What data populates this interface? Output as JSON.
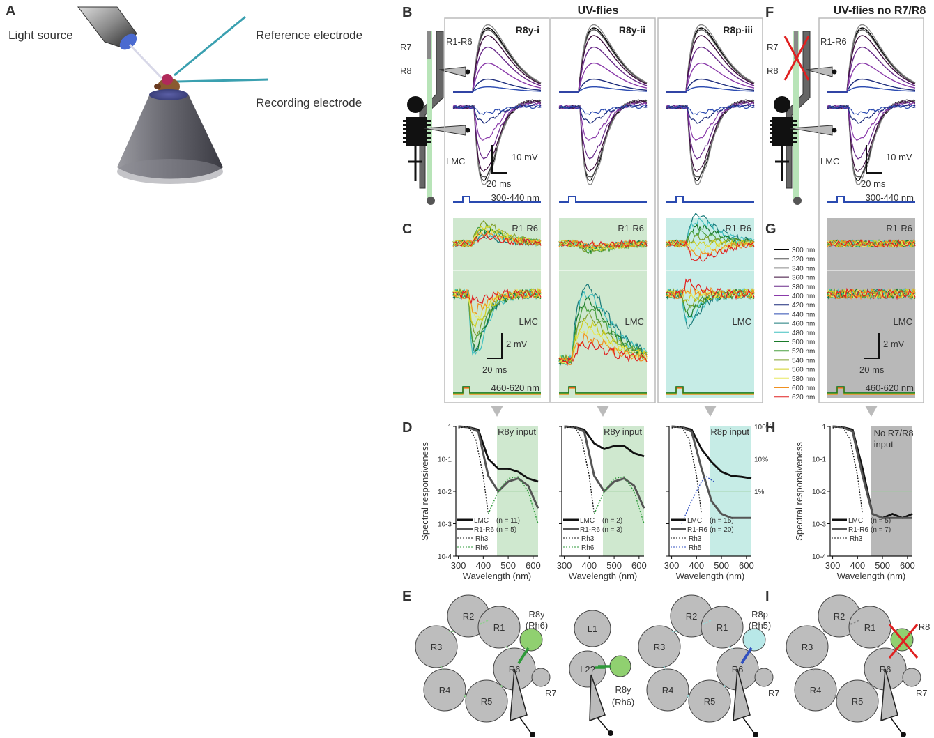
{
  "panel_letters": {
    "A": "A",
    "B": "B",
    "C": "C",
    "D": "D",
    "E": "E",
    "F": "F",
    "G": "G",
    "H": "H",
    "I": "I"
  },
  "titles": {
    "uv_flies": "UV-flies",
    "uv_flies_no_r7r8": "UV-flies no R7/R8"
  },
  "setup": {
    "light_source": "Light source",
    "reference_electrode": "Reference electrode",
    "recording_electrode": "Recording electrode"
  },
  "eye_labels": {
    "r7": "R7",
    "r8": "R8"
  },
  "columns": [
    {
      "name": "R8y-i",
      "input": "R8y input",
      "input_color": "#2e9a3a",
      "n_lmc": "(n = 11)",
      "n_r1r6": "(n = 5)",
      "rh": "Rh6",
      "rh_color": "#2e9a3a",
      "bg": "#cfe8cf",
      "resp": "neg"
    },
    {
      "name": "R8y-ii",
      "input": "R8y input",
      "input_color": "#2e9a3a",
      "n_lmc": "(n = 2)",
      "n_r1r6": "(n = 3)",
      "rh": "Rh6",
      "rh_color": "#2e9a3a",
      "bg": "#cfe8cf",
      "resp": "pos"
    },
    {
      "name": "R8p-iii",
      "input": "R8p input",
      "input_color": "#3050c0",
      "n_lmc": "(n = 15)",
      "n_r1r6": "(n = 20)",
      "rh": "Rh5",
      "rh_color": "#3050c0",
      "bg": "#c6ece6",
      "resp": "neg"
    },
    {
      "name": "",
      "input": "No R7/R8 input",
      "input_color": "#333333",
      "n_lmc": "(n = 5)",
      "n_r1r6": "(n = 7)",
      "rh": "",
      "rh_color": "#333333",
      "bg": "#b8b8b8",
      "resp": "flat"
    }
  ],
  "trace_labels": {
    "r1r6": "R1-R6",
    "lmc": "LMC"
  },
  "scale_bars": {
    "mv10": "10 mV",
    "mv2": "2 mV",
    "ms20": "20 ms"
  },
  "stimulus": {
    "uv": "300-440 nm",
    "green": "460-620 nm"
  },
  "legend": {
    "items": [
      "300 nm",
      "320 nm",
      "340 nm",
      "360 nm",
      "380 nm",
      "400 nm",
      "420 nm",
      "440 nm",
      "460 nm",
      "480 nm",
      "500 nm",
      "520 nm",
      "540 nm",
      "560 nm",
      "580 nm",
      "600 nm",
      "620 nm"
    ],
    "colors": [
      "#000000",
      "#555555",
      "#8a8a8a",
      "#3a0a3a",
      "#6a2a8a",
      "#8a3aaa",
      "#1a2a7a",
      "#2a4ab0",
      "#1a7a7a",
      "#40c0c0",
      "#1a7a2a",
      "#4aa040",
      "#80a030",
      "#d0d020",
      "#e8e860",
      "#f09020",
      "#e02020"
    ]
  },
  "spectral": {
    "ylabel": "Spectral responsiveness",
    "xlabel": "Wavelength (nm)",
    "xticks": [
      "300",
      "400",
      "500",
      "600"
    ],
    "yticks": [
      "1",
      "10-1",
      "10-2",
      "10-3",
      "10-4"
    ],
    "pct": [
      "100%",
      "10%",
      "1%"
    ],
    "lmc": "LMC",
    "r1r6": "R1-R6",
    "rh3": "Rh3"
  },
  "chart_data": [
    {
      "type": "line",
      "title": "R8y-i",
      "xlabel": "Wavelength (nm)",
      "ylabel": "Spectral responsiveness",
      "xlim": [
        290,
        620
      ],
      "ylim": [
        0.0001,
        1
      ],
      "yscale": "log",
      "series": [
        {
          "name": "LMC",
          "x": [
            300,
            340,
            380,
            420,
            460,
            500,
            540,
            580,
            620
          ],
          "y": [
            1,
            0.95,
            0.8,
            0.1,
            0.05,
            0.05,
            0.04,
            0.025,
            0.02
          ]
        },
        {
          "name": "R1-R6",
          "x": [
            300,
            340,
            380,
            420,
            460,
            500,
            540,
            580,
            620
          ],
          "y": [
            1,
            0.95,
            0.7,
            0.03,
            0.01,
            0.02,
            0.025,
            0.015,
            0.003
          ]
        },
        {
          "name": "Rh3",
          "x": [
            300,
            340,
            370,
            400,
            420
          ],
          "y": [
            0.9,
            1,
            0.4,
            0.03,
            0.002
          ]
        },
        {
          "name": "Rh6",
          "x": [
            420,
            460,
            500,
            540,
            580,
            620
          ],
          "y": [
            0.002,
            0.01,
            0.025,
            0.028,
            0.01,
            0.001
          ]
        }
      ]
    },
    {
      "type": "line",
      "title": "R8y-ii",
      "xlabel": "Wavelength (nm)",
      "ylabel": "Spectral responsiveness",
      "xlim": [
        290,
        620
      ],
      "ylim": [
        0.0001,
        1
      ],
      "yscale": "log",
      "series": [
        {
          "name": "LMC",
          "x": [
            300,
            340,
            380,
            420,
            460,
            500,
            540,
            580,
            620
          ],
          "y": [
            1,
            0.95,
            0.8,
            0.3,
            0.2,
            0.25,
            0.25,
            0.15,
            0.12
          ]
        },
        {
          "name": "R1-R6",
          "x": [
            300,
            340,
            380,
            420,
            460,
            500,
            540,
            580,
            620
          ],
          "y": [
            1,
            0.95,
            0.7,
            0.03,
            0.01,
            0.02,
            0.025,
            0.015,
            0.003
          ]
        },
        {
          "name": "Rh3",
          "x": [
            300,
            340,
            370,
            400,
            420
          ],
          "y": [
            0.9,
            1,
            0.4,
            0.03,
            0.002
          ]
        },
        {
          "name": "Rh6",
          "x": [
            420,
            460,
            500,
            540,
            580,
            620
          ],
          "y": [
            0.002,
            0.01,
            0.025,
            0.028,
            0.01,
            0.001
          ]
        }
      ]
    },
    {
      "type": "line",
      "title": "R8p-iii",
      "xlabel": "Wavelength (nm)",
      "ylabel": "Spectral responsiveness",
      "xlim": [
        290,
        620
      ],
      "ylim": [
        0.0001,
        1
      ],
      "yscale": "log",
      "series": [
        {
          "name": "LMC",
          "x": [
            300,
            340,
            380,
            420,
            460,
            500,
            540,
            580,
            620
          ],
          "y": [
            1,
            0.95,
            0.8,
            0.2,
            0.08,
            0.04,
            0.03,
            0.028,
            0.025
          ]
        },
        {
          "name": "R1-R6",
          "x": [
            300,
            340,
            380,
            420,
            460,
            500,
            540,
            580,
            620
          ],
          "y": [
            1,
            0.95,
            0.7,
            0.05,
            0.005,
            0.002,
            0.0015,
            0.0015,
            0.0015
          ]
        },
        {
          "name": "Rh3",
          "x": [
            300,
            340,
            370,
            400,
            420
          ],
          "y": [
            0.9,
            1,
            0.4,
            0.03,
            0.002
          ]
        },
        {
          "name": "Rh5",
          "x": [
            340,
            380,
            420,
            440,
            470
          ],
          "y": [
            0.001,
            0.005,
            0.02,
            0.028,
            0.02
          ]
        }
      ]
    },
    {
      "type": "line",
      "title": "",
      "xlabel": "Wavelength (nm)",
      "ylabel": "Spectral responsiveness",
      "xlim": [
        290,
        620
      ],
      "ylim": [
        0.0001,
        1
      ],
      "yscale": "log",
      "series": [
        {
          "name": "LMC",
          "x": [
            300,
            340,
            380,
            420,
            460,
            500,
            540,
            580,
            620
          ],
          "y": [
            1,
            0.95,
            0.8,
            0.05,
            0.002,
            0.0015,
            0.002,
            0.0015,
            0.002
          ]
        },
        {
          "name": "R1-R6",
          "x": [
            300,
            340,
            380,
            420,
            460,
            500,
            540,
            580,
            620
          ],
          "y": [
            1,
            0.95,
            0.7,
            0.03,
            0.002,
            0.0015,
            0.0015,
            0.0015,
            0.0015
          ]
        },
        {
          "name": "Rh3",
          "x": [
            300,
            340,
            370,
            400,
            420
          ],
          "y": [
            0.9,
            1,
            0.4,
            0.03,
            0.002
          ]
        }
      ]
    }
  ],
  "circuits": {
    "cells": [
      "R1",
      "R2",
      "R3",
      "R4",
      "R5",
      "R6",
      "R7"
    ],
    "r8y": "R8y",
    "rh6": "(Rh6)",
    "r8p": "R8p",
    "rh5": "(Rh5)",
    "r8": "R8",
    "r7": "R7",
    "l1": "L1",
    "l2": "L2?"
  }
}
